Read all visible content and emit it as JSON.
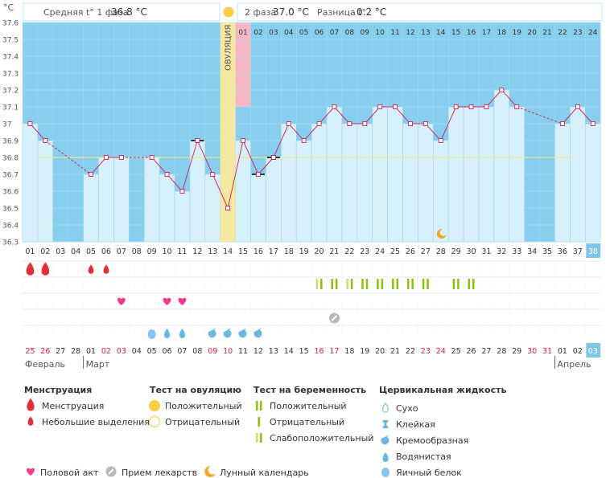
{
  "header": {
    "phase1": "Средняя t° 1 фаза",
    "phase1_value": "36.8 °C",
    "phase2": "2 фаза",
    "phase2_value": "37.0 °C",
    "diff": "Разница t°",
    "diff_value": "0.2 °C"
  },
  "chart_data": {
    "type": "line",
    "ylabel": "°C",
    "ylim": [
      36.3,
      37.6
    ],
    "y_ticks": [
      "37.6",
      "37.5",
      "37.4",
      "37.3",
      "37.2",
      "37.1",
      "37",
      "36.9",
      "36.8",
      "36.7",
      "36.6",
      "36.5",
      "36.4",
      "36.3"
    ],
    "cycle_days": [
      "01",
      "02",
      "03",
      "04",
      "05",
      "06",
      "07",
      "08",
      "09",
      "10",
      "11",
      "12",
      "13",
      "14",
      "15",
      "16",
      "17",
      "18",
      "19",
      "20",
      "21",
      "22",
      "23",
      "24",
      "25",
      "26",
      "27",
      "28",
      "29",
      "30",
      "31",
      "32",
      "33",
      "34",
      "35",
      "36",
      "37",
      "38"
    ],
    "temperatures": [
      37.0,
      36.9,
      null,
      null,
      36.7,
      36.8,
      36.8,
      null,
      36.8,
      36.7,
      36.6,
      36.9,
      36.7,
      36.5,
      36.9,
      36.7,
      36.8,
      37.0,
      36.9,
      37.0,
      37.1,
      37.0,
      37.0,
      37.1,
      37.1,
      37.0,
      37.0,
      36.9,
      37.1,
      37.1,
      37.1,
      37.2,
      37.1,
      null,
      null,
      37.0,
      37.1,
      37.0
    ],
    "cover_line": 36.8,
    "ovulation_label": "ОВУЛЯЦИЯ",
    "ovulation_day": 14,
    "highlight_day": 15,
    "phase2_days": [
      "01",
      "02",
      "03",
      "04",
      "05",
      "06",
      "07",
      "08",
      "09",
      "10",
      "11",
      "12",
      "13",
      "14",
      "15",
      "16",
      "17",
      "18",
      "19",
      "20",
      "21",
      "22",
      "23",
      "24"
    ],
    "calendar_dates": [
      "25",
      "26",
      "27",
      "28",
      "01",
      "02",
      "03",
      "04",
      "05",
      "06",
      "07",
      "08",
      "09",
      "10",
      "11",
      "12",
      "13",
      "14",
      "15",
      "16",
      "17",
      "18",
      "19",
      "20",
      "21",
      "22",
      "23",
      "24",
      "25",
      "26",
      "27",
      "28",
      "29",
      "30",
      "31",
      "01",
      "02",
      "03"
    ],
    "weekend_indices": [
      0,
      1,
      5,
      6,
      12,
      13,
      19,
      20,
      26,
      27,
      33,
      34
    ],
    "months": [
      "Февраль",
      "Март",
      "Апрель"
    ],
    "menstruation": {
      "1": "heavy",
      "2": "heavy",
      "5": "light",
      "6": "light"
    },
    "pregnancy_tests": [
      20,
      21,
      22,
      23,
      24,
      25,
      26,
      27,
      29,
      30
    ],
    "intercourse": [
      7,
      10,
      11
    ],
    "medication": [
      21
    ],
    "moon": [
      28
    ],
    "cervical_fluid": {
      "9": "egg-white",
      "10": "watery",
      "11": "watery",
      "13": "creamy",
      "14": "creamy",
      "15": "creamy",
      "16": "creamy"
    }
  },
  "legend": {
    "menstruation": {
      "title": "Менструация",
      "items": [
        "Менструация",
        "Небольшие выделения"
      ]
    },
    "ovulation_test": {
      "title": "Тест на овуляцию",
      "items": [
        "Положительный",
        "Отрицательный"
      ]
    },
    "pregnancy_test": {
      "title": "Тест на беременность",
      "items": [
        "Положительный",
        "Отрицательный",
        "Слабоположительный"
      ]
    },
    "cervical": {
      "title": "Цервикальная жидкость",
      "items": [
        "Сухо",
        "Клейкая",
        "Кремообразная",
        "Водянистая",
        "Яичный белок"
      ]
    },
    "bottom": [
      "Половой акт",
      "Прием лекарств",
      "Лунный календарь"
    ]
  },
  "colors": {
    "phase_bg": "#87ceef",
    "bar": "#d7f1fc",
    "bar_border": "#9fd3ee",
    "line": "#d03060",
    "ovulation": "#f5e8a0",
    "highlight": "#f8b8c8",
    "cover": "#f0e69a",
    "accent_blue": "#7ec6e8",
    "menstruation": "#e0303a",
    "heart": "#f03c8c",
    "moon": "#f5a623",
    "preg_test": "#88c40c",
    "preg_weak": "#c4e07a",
    "grid_text": "#555555"
  }
}
